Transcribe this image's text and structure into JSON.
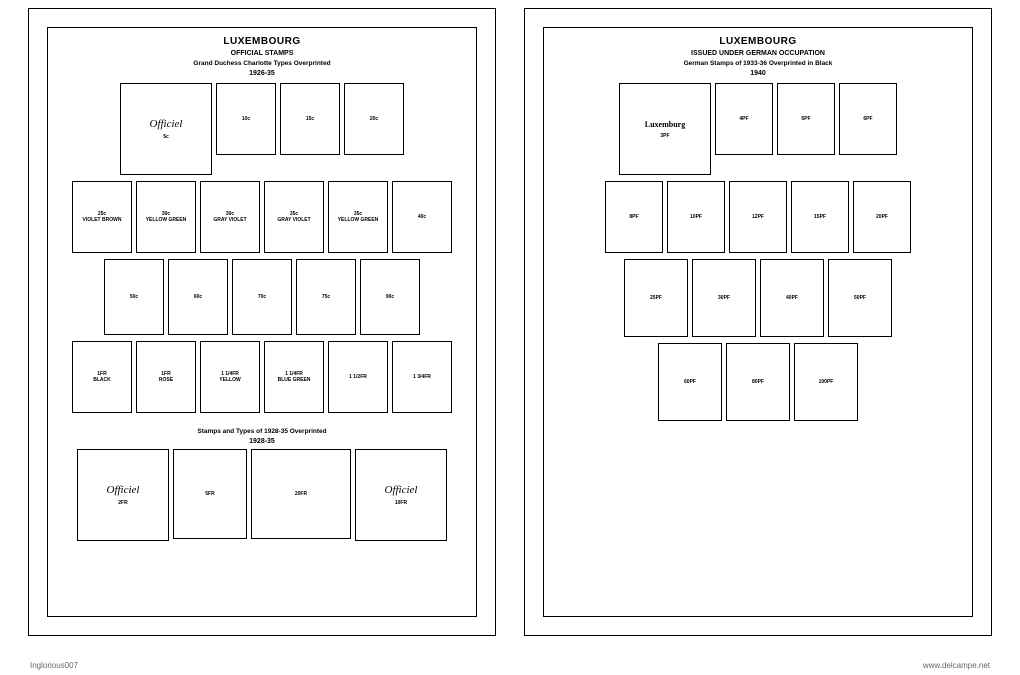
{
  "credits": {
    "left": "Inglorious007",
    "right": "www.delcampe.net"
  },
  "page1": {
    "country": "LUXEMBOURG",
    "subtitle": "OFFICIAL STAMPS",
    "desc": "Grand Duchess Charlotte Types Overprinted",
    "year": "1926-35",
    "overprint": "Officiel",
    "section2_desc": "Stamps and Types of 1928-35 Overprinted",
    "section2_year": "1928-35",
    "row1": [
      "5c",
      "10c",
      "15c",
      "20c"
    ],
    "row2": [
      "25c\nVIOLET BROWN",
      "30c\nYELLOW GREEN",
      "30c\nGRAY VIOLET",
      "35c\nGRAY VIOLET",
      "35c\nYELLOW GREEN",
      "40c"
    ],
    "row3": [
      "50c",
      "60c",
      "70c",
      "75c",
      "90c"
    ],
    "row4": [
      "1FR\nBLACK",
      "1FR\nROSE",
      "1 1/4FR\nYELLOW",
      "1 1/4FR\nBLUE GREEN",
      "1 1/2FR",
      "1 3/4FR"
    ],
    "row5": [
      "2FR",
      "5FR",
      "20FR",
      "10FR"
    ]
  },
  "page2": {
    "country": "LUXEMBOURG",
    "subtitle": "ISSUED UNDER GERMAN OCCUPATION",
    "desc": "German Stamps of 1933-36 Overprinted in Black",
    "year": "1940",
    "overprint": "Luxemburg",
    "row1": [
      "3PF",
      "4PF",
      "5PF",
      "6PF"
    ],
    "row2": [
      "8PF",
      "10PF",
      "12PF",
      "15PF",
      "20PF"
    ],
    "row3": [
      "25PF",
      "30PF",
      "40PF",
      "50PF"
    ],
    "row4": [
      "60PF",
      "80PF",
      "100PF"
    ]
  }
}
